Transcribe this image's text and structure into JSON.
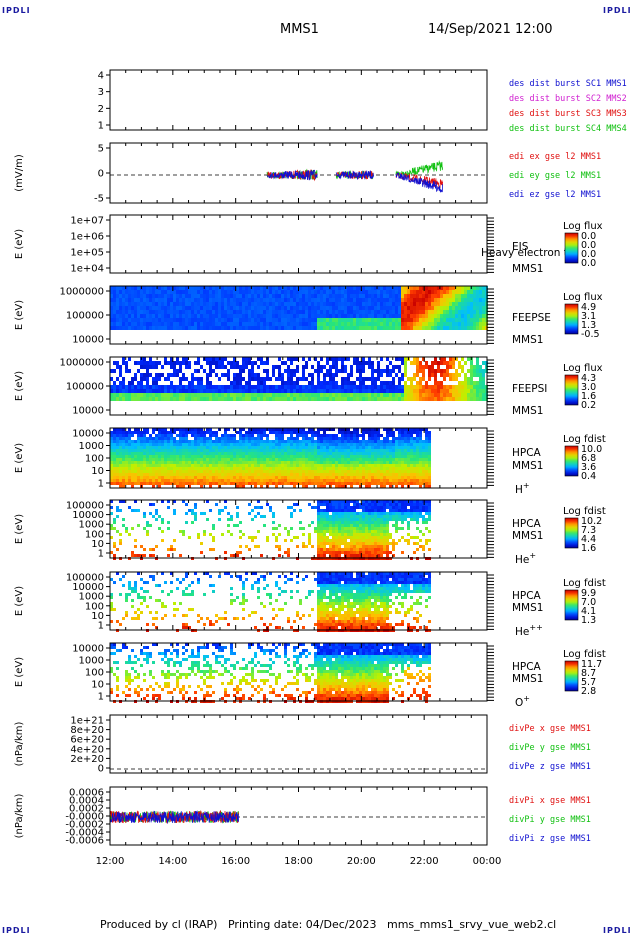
{
  "header": {
    "left_tag": "IPDLI",
    "right_tag": "IPDLI",
    "mission": "MMS1",
    "datetime": "14/Sep/2021 12:00"
  },
  "footer": {
    "left_tag": "IPDLI",
    "right_tag": "IPDLI",
    "produced_by": "Produced by cl (IRAP)",
    "printing_date": "Printing date: 04/Dec/2023",
    "filename": "mms_mms1_srvy_vue_web2.cl"
  },
  "colors": {
    "blue": "#1010d0",
    "magenta": "#d020d0",
    "red": "#e01010",
    "green": "#10c010"
  },
  "chart_data": {
    "type": "heatmap",
    "x_ticks": [
      "12:00",
      "14:00",
      "16:00",
      "18:00",
      "20:00",
      "22:00",
      "00:00"
    ],
    "x_range_hours": [
      12,
      24
    ],
    "panels": [
      {
        "id": "burst",
        "type": "line",
        "yticks": [
          "4",
          "3",
          "2",
          "1"
        ],
        "legend": [
          "des dist burst SC1 MMS1",
          "des dist burst SC2 MMS2",
          "des dist burst SC3 MMS3",
          "des dist burst SC4 MMS4"
        ],
        "legend_colors": [
          "blue",
          "magenta",
          "red",
          "green"
        ]
      },
      {
        "id": "edi",
        "type": "line",
        "ylabel": "(mV/m)",
        "yticks": [
          "5",
          "0",
          "-5"
        ],
        "ylim": [
          -7,
          8
        ],
        "legend": [
          "edi ex gse l2 MMS1",
          "edi ey gse l2 MMS1",
          "edi ez gse l2 MMS1"
        ],
        "legend_colors": [
          "red",
          "green",
          "blue"
        ],
        "data_intervals_hours": [
          [
            17.0,
            18.6
          ],
          [
            19.2,
            20.4
          ],
          [
            21.1,
            22.6
          ]
        ]
      },
      {
        "id": "eis",
        "type": "heatmap",
        "ylabel": "E (eV)",
        "yticks": [
          "1e+07",
          "1e+06",
          "1e+05",
          "1e+04"
        ],
        "right_labels": [
          "EIS",
          "MMS1"
        ],
        "overlap_text": "Heavy electron to",
        "cbar_title": "Log flux",
        "cbar_values": [
          "0.0",
          "0.0",
          "0.0",
          "0.0"
        ]
      },
      {
        "id": "feepse",
        "type": "heatmap",
        "ylabel": "E (eV)",
        "yticks": [
          "1000000",
          "100000",
          "10000"
        ],
        "right_labels": [
          "FEEPSE",
          "MMS1"
        ],
        "cbar_title": "Log flux",
        "cbar_values": [
          "4.9",
          "3.1",
          "1.3",
          "-0.5"
        ]
      },
      {
        "id": "feepsi",
        "type": "heatmap",
        "ylabel": "E (eV)",
        "yticks": [
          "1000000",
          "100000",
          "10000"
        ],
        "right_labels": [
          "FEEPSI",
          "MMS1"
        ],
        "cbar_title": "Log flux",
        "cbar_values": [
          "4.3",
          "3.0",
          "1.6",
          "0.2"
        ]
      },
      {
        "id": "hpca-h",
        "type": "heatmap",
        "ylabel": "E (eV)",
        "yticks": [
          "10000",
          "1000",
          "100",
          "10",
          "1"
        ],
        "right_labels": [
          "HPCA",
          "MMS1"
        ],
        "species": "H",
        "species_sup": "+",
        "cbar_title": "Log fdist",
        "cbar_values": [
          "10.0",
          "6.8",
          "3.6",
          "0.4"
        ]
      },
      {
        "id": "hpca-he",
        "type": "heatmap",
        "ylabel": "E (eV)",
        "yticks": [
          "100000",
          "10000",
          "1000",
          "100",
          "10",
          "1"
        ],
        "right_labels": [
          "HPCA",
          "MMS1"
        ],
        "species": "He",
        "species_sup": "+",
        "cbar_title": "Log fdist",
        "cbar_values": [
          "10.2",
          "7.3",
          "4.4",
          "1.6"
        ]
      },
      {
        "id": "hpca-he2",
        "type": "heatmap",
        "ylabel": "E (eV)",
        "yticks": [
          "100000",
          "10000",
          "1000",
          "100",
          "10",
          "1"
        ],
        "right_labels": [
          "HPCA",
          "MMS1"
        ],
        "species": "He",
        "species_sup": "++",
        "cbar_title": "Log fdist",
        "cbar_values": [
          "9.9",
          "7.0",
          "4.1",
          "1.3"
        ]
      },
      {
        "id": "hpca-o",
        "type": "heatmap",
        "ylabel": "E (eV)",
        "yticks": [
          "10000",
          "1000",
          "100",
          "10",
          "1"
        ],
        "right_labels": [
          "HPCA",
          "MMS1"
        ],
        "species": "O",
        "species_sup": "+",
        "cbar_title": "Log fdist",
        "cbar_values": [
          "11.7",
          "8.7",
          "5.7",
          "2.8"
        ]
      },
      {
        "id": "divpe",
        "type": "line",
        "ylabel": "(nPa/km)",
        "yticks": [
          "1e+21",
          "8e+20",
          "6e+20",
          "4e+20",
          "2e+20",
          "0"
        ],
        "legend": [
          "divPe x gse MMS1",
          "divPe y gse MMS1",
          "divPe z gse MMS1"
        ],
        "legend_colors": [
          "red",
          "green",
          "blue"
        ]
      },
      {
        "id": "divpi",
        "type": "line",
        "ylabel": "(nPa/km)",
        "yticks": [
          "0.0006",
          "0.0004",
          "0.0002",
          "-0.0000",
          "-0.0002",
          "-0.0004",
          "-0.0006"
        ],
        "legend": [
          "divPi x gse MMS1",
          "divPi y gse MMS1",
          "divPi z gse MMS1"
        ],
        "legend_colors": [
          "red",
          "green",
          "blue"
        ],
        "data_intervals_hours": [
          [
            12.0,
            16.1
          ]
        ]
      }
    ]
  }
}
